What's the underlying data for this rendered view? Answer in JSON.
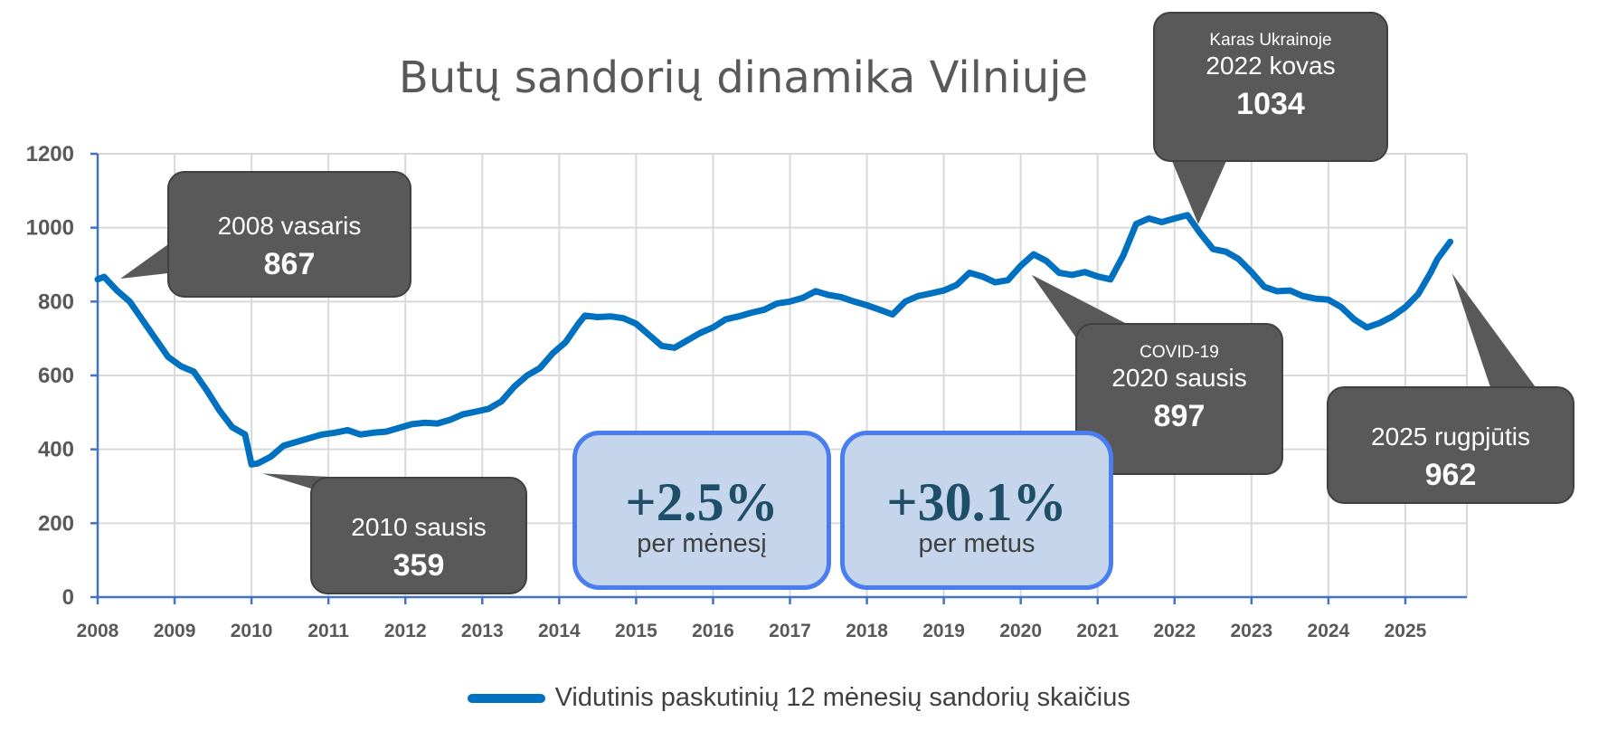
{
  "chart_data": {
    "type": "line",
    "title": "Butų sandorių dinamika Vilniuje",
    "xlabel": "",
    "ylabel": "",
    "ylim": [
      0,
      1200
    ],
    "y_ticks": [
      "0",
      "200",
      "400",
      "600",
      "800",
      "1000",
      "1200"
    ],
    "x_ticks": [
      "2008",
      "2009",
      "2010",
      "2011",
      "2012",
      "2013",
      "2014",
      "2015",
      "2016",
      "2017",
      "2018",
      "2019",
      "2020",
      "2021",
      "2022",
      "2023",
      "2024",
      "2025"
    ],
    "grid": true,
    "legend_position": "bottom",
    "series": [
      {
        "name": "Vidutinis paskutinių 12 mėnesių sandorių skaičius",
        "color": "#0070c0",
        "points": [
          [
            "2008-01",
            860
          ],
          [
            "2008-02",
            867
          ],
          [
            "2008-04",
            830
          ],
          [
            "2008-06",
            800
          ],
          [
            "2008-08",
            750
          ],
          [
            "2008-10",
            700
          ],
          [
            "2008-12",
            650
          ],
          [
            "2009-02",
            625
          ],
          [
            "2009-04",
            610
          ],
          [
            "2009-06",
            560
          ],
          [
            "2009-08",
            505
          ],
          [
            "2009-10",
            460
          ],
          [
            "2009-12",
            440
          ],
          [
            "2010-01",
            359
          ],
          [
            "2010-02",
            362
          ],
          [
            "2010-04",
            380
          ],
          [
            "2010-06",
            410
          ],
          [
            "2010-08",
            420
          ],
          [
            "2010-10",
            430
          ],
          [
            "2010-12",
            440
          ],
          [
            "2011-02",
            445
          ],
          [
            "2011-04",
            452
          ],
          [
            "2011-06",
            440
          ],
          [
            "2011-08",
            445
          ],
          [
            "2011-10",
            448
          ],
          [
            "2011-12",
            458
          ],
          [
            "2012-02",
            468
          ],
          [
            "2012-04",
            472
          ],
          [
            "2012-06",
            470
          ],
          [
            "2012-08",
            480
          ],
          [
            "2012-10",
            495
          ],
          [
            "2012-12",
            502
          ],
          [
            "2013-02",
            510
          ],
          [
            "2013-04",
            530
          ],
          [
            "2013-06",
            570
          ],
          [
            "2013-08",
            600
          ],
          [
            "2013-10",
            620
          ],
          [
            "2013-12",
            660
          ],
          [
            "2014-02",
            690
          ],
          [
            "2014-04",
            740
          ],
          [
            "2014-05",
            762
          ],
          [
            "2014-07",
            758
          ],
          [
            "2014-09",
            760
          ],
          [
            "2014-11",
            755
          ],
          [
            "2015-01",
            740
          ],
          [
            "2015-03",
            710
          ],
          [
            "2015-05",
            680
          ],
          [
            "2015-07",
            675
          ],
          [
            "2015-09",
            695
          ],
          [
            "2015-11",
            715
          ],
          [
            "2016-01",
            730
          ],
          [
            "2016-03",
            752
          ],
          [
            "2016-05",
            760
          ],
          [
            "2016-07",
            770
          ],
          [
            "2016-09",
            778
          ],
          [
            "2016-11",
            795
          ],
          [
            "2017-01",
            800
          ],
          [
            "2017-03",
            810
          ],
          [
            "2017-05",
            828
          ],
          [
            "2017-07",
            818
          ],
          [
            "2017-09",
            812
          ],
          [
            "2017-11",
            800
          ],
          [
            "2018-01",
            790
          ],
          [
            "2018-03",
            778
          ],
          [
            "2018-05",
            765
          ],
          [
            "2018-07",
            800
          ],
          [
            "2018-09",
            815
          ],
          [
            "2018-11",
            822
          ],
          [
            "2019-01",
            830
          ],
          [
            "2019-03",
            845
          ],
          [
            "2019-05",
            878
          ],
          [
            "2019-07",
            868
          ],
          [
            "2019-09",
            852
          ],
          [
            "2019-11",
            858
          ],
          [
            "2020-01",
            897
          ],
          [
            "2020-03",
            928
          ],
          [
            "2020-05",
            910
          ],
          [
            "2020-07",
            878
          ],
          [
            "2020-09",
            872
          ],
          [
            "2020-11",
            880
          ],
          [
            "2021-01",
            868
          ],
          [
            "2021-03",
            860
          ],
          [
            "2021-05",
            925
          ],
          [
            "2021-07",
            1010
          ],
          [
            "2021-09",
            1025
          ],
          [
            "2021-11",
            1015
          ],
          [
            "2022-01",
            1025
          ],
          [
            "2022-03",
            1034
          ],
          [
            "2022-05",
            985
          ],
          [
            "2022-07",
            942
          ],
          [
            "2022-09",
            935
          ],
          [
            "2022-11",
            915
          ],
          [
            "2023-01",
            880
          ],
          [
            "2023-03",
            840
          ],
          [
            "2023-05",
            828
          ],
          [
            "2023-07",
            830
          ],
          [
            "2023-09",
            815
          ],
          [
            "2023-11",
            808
          ],
          [
            "2024-01",
            805
          ],
          [
            "2024-03",
            785
          ],
          [
            "2024-05",
            752
          ],
          [
            "2024-07",
            730
          ],
          [
            "2024-09",
            742
          ],
          [
            "2024-11",
            760
          ],
          [
            "2025-01",
            785
          ],
          [
            "2025-03",
            820
          ],
          [
            "2025-05",
            880
          ],
          [
            "2025-06",
            915
          ],
          [
            "2025-08",
            962
          ]
        ]
      }
    ],
    "annotations": [
      {
        "sub": "",
        "date": "2008 vasaris",
        "value": "867",
        "point": [
          "2008-02",
          867
        ]
      },
      {
        "sub": "",
        "date": "2010 sausis",
        "value": "359",
        "point": [
          "2010-01",
          359
        ]
      },
      {
        "sub": "COVID-19",
        "date": "2020 sausis",
        "value": "897",
        "point": [
          "2020-01",
          897
        ]
      },
      {
        "sub": "Karas Ukrainoje",
        "date": "2022 kovas",
        "value": "1034",
        "point": [
          "2022-03",
          1034
        ]
      },
      {
        "sub": "",
        "date": "2025 rugpjūtis",
        "value": "962",
        "point": [
          "2025-08",
          962
        ]
      }
    ]
  },
  "stats": {
    "monthly": {
      "value": "+2.5%",
      "label": "per mėnesį"
    },
    "yearly": {
      "value": "+30.1%",
      "label": "per metus"
    }
  },
  "legend": {
    "label": "Vidutinis paskutinių 12 mėnesių sandorių skaičius"
  }
}
